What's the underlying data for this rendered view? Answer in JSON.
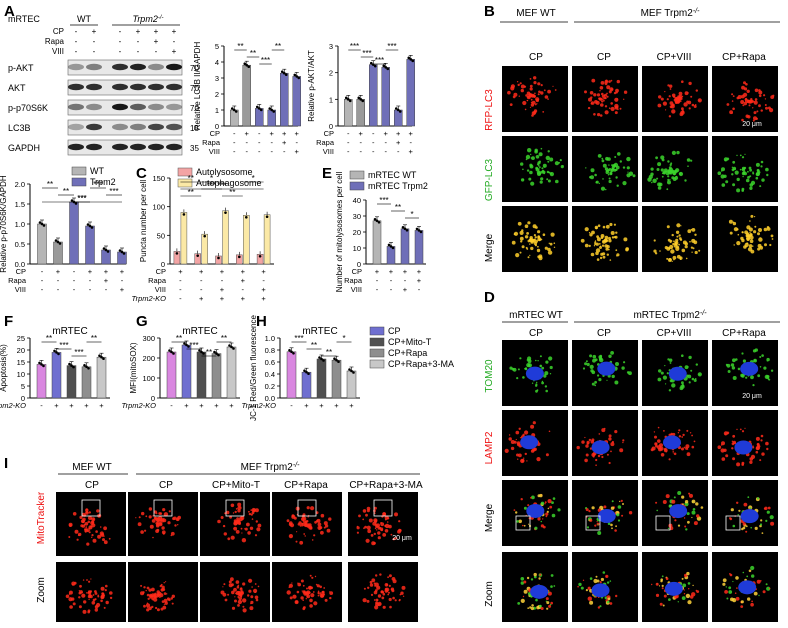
{
  "panel_letters": {
    "A": "A",
    "B": "B",
    "C": "C",
    "D": "D",
    "E": "E",
    "F": "F",
    "G": "G",
    "H": "H",
    "I": "I"
  },
  "common": {
    "cp": "CP",
    "rapa": "Rapa",
    "viii": "VIII",
    "trpm2ko": "Trpm2-KO",
    "scale": "20 μm",
    "zoom": "Zoom",
    "merge": "Merge",
    "mrtec": "mRTEC"
  },
  "panelA": {
    "header_cell": "mRTEC",
    "wt": "WT",
    "ko": "Trpm2",
    "row_labels": [
      "CP",
      "Rapa",
      "VIII"
    ],
    "signs": [
      [
        "-",
        "+",
        "-",
        "+",
        "+",
        "+"
      ],
      [
        "-",
        "-",
        "-",
        "-",
        "+",
        "-"
      ],
      [
        "-",
        "-",
        "-",
        "-",
        "-",
        "+"
      ]
    ],
    "blots": [
      {
        "name": "p-AKT",
        "kda": "70"
      },
      {
        "name": "AKT",
        "kda": "70"
      },
      {
        "name": "p-p70S6K",
        "kda": "70"
      },
      {
        "name": "LC3B",
        "kda": "15"
      },
      {
        "name": "GAPDH",
        "kda": "35"
      }
    ]
  },
  "panelB": {
    "col_labels": [
      "MEF WT",
      "CP",
      "CP",
      "CP+VIII",
      "CP+Rapa"
    ],
    "group_label": "MEF Trpm2",
    "row_labels": [
      "RFP-LC3",
      "GFP-LC3",
      "Merge"
    ]
  },
  "panelD": {
    "col_labels": [
      "CP",
      "CP",
      "CP+VIII",
      "CP+Rapa"
    ],
    "group_wt": "mRTEC  WT",
    "group_ko": "mRTEC Trpm2",
    "row_labels": [
      "TOM20",
      "LAMP2",
      "Merge",
      "Zoom"
    ]
  },
  "panelI": {
    "col_labels": [
      "CP",
      "CP",
      "CP+Mito-T",
      "CP+Rapa",
      "CP+Rapa+3-MA"
    ],
    "group_wt": "MEF WT",
    "group_ko": "MEF Trpm2",
    "row_labels": [
      "MitoTracker",
      "Zoom"
    ]
  },
  "chart_data": [
    {
      "id": "A_lc3",
      "type": "bar",
      "ylabel": "Relative LC3B II/GAPDH",
      "ylim": [
        0,
        5
      ],
      "yticks": [
        0,
        1,
        2,
        3,
        4,
        5
      ],
      "values": [
        1.0,
        3.8,
        1.1,
        1.0,
        3.3,
        3.1
      ],
      "colors": [
        "#b5b5b5",
        "#9a9a9a",
        "#6f6fb8",
        "#6f6fb8",
        "#6f6fb8",
        "#6f6fb8"
      ],
      "sig": [
        "**",
        "**",
        "***",
        "**"
      ],
      "signs": [
        [
          "-",
          "+",
          "-",
          "+",
          "+",
          "+"
        ],
        [
          "-",
          "-",
          "-",
          "-",
          "+",
          "-"
        ],
        [
          "-",
          "-",
          "-",
          "-",
          "-",
          "+"
        ]
      ],
      "rows": [
        "CP",
        "Rapa",
        "VIII"
      ]
    },
    {
      "id": "A_akt",
      "type": "bar",
      "ylabel": "Relative p-AKT/AKT",
      "ylim": [
        0,
        3
      ],
      "yticks": [
        0,
        1,
        2,
        3
      ],
      "values": [
        1.0,
        1.0,
        2.3,
        2.2,
        0.6,
        2.5
      ],
      "colors": [
        "#b5b5b5",
        "#9a9a9a",
        "#6f6fb8",
        "#6f6fb8",
        "#6f6fb8",
        "#6f6fb8"
      ],
      "sig": [
        "***",
        "***",
        "***",
        "***"
      ],
      "signs": [
        [
          "-",
          "+",
          "-",
          "+",
          "+",
          "+"
        ],
        [
          "-",
          "-",
          "-",
          "-",
          "+",
          "-"
        ],
        [
          "-",
          "-",
          "-",
          "-",
          "-",
          "+"
        ]
      ],
      "rows": [
        "CP",
        "Rapa",
        "VIII"
      ]
    },
    {
      "id": "A_p70",
      "type": "bar",
      "ylabel": "Relative p-p70S6K/GAPDH",
      "ylim": [
        0,
        2.0
      ],
      "yticks": [
        0,
        0.5,
        1.0,
        1.5,
        2.0
      ],
      "values": [
        1.0,
        0.55,
        1.55,
        0.95,
        0.35,
        0.3
      ],
      "colors": [
        "#b5b5b5",
        "#9a9a9a",
        "#6f6fb8",
        "#6f6fb8",
        "#6f6fb8",
        "#6f6fb8"
      ],
      "legend": [
        "WT",
        "Trpm2"
      ],
      "sig": [
        "**",
        "**",
        "***",
        "***",
        "***",
        "***"
      ],
      "signs": [
        [
          "-",
          "+",
          "-",
          "+",
          "+",
          "+"
        ],
        [
          "-",
          "-",
          "-",
          "-",
          "+",
          "-"
        ],
        [
          "-",
          "-",
          "-",
          "-",
          "-",
          "+"
        ]
      ],
      "rows": [
        "CP",
        "Rapa",
        "VIII"
      ]
    },
    {
      "id": "C",
      "type": "bar",
      "ylabel": "Puncta number per cell",
      "ylim": [
        0,
        150
      ],
      "yticks": [
        0,
        50,
        100,
        150
      ],
      "series": [
        {
          "name": "Autolysosome",
          "color": "#f3a4a4",
          "values": [
            22,
            18,
            14,
            16,
            17
          ]
        },
        {
          "name": "Autophagosome",
          "color": "#fbe9a6",
          "values": [
            90,
            52,
            93,
            85,
            86
          ]
        }
      ],
      "sig": [
        "**",
        "***",
        "**",
        "*",
        "***",
        "**",
        "*"
      ],
      "signs": [
        [
          "+",
          "+",
          "+",
          "+",
          "+"
        ],
        [
          "-",
          "-",
          "-",
          "+",
          "-"
        ],
        [
          "-",
          "-",
          "+",
          "-",
          "+"
        ],
        [
          "-",
          "+",
          "+",
          "+",
          "+"
        ]
      ],
      "rows": [
        "CP",
        "Rapa",
        "VIII",
        "Trpm2-KO"
      ]
    },
    {
      "id": "E",
      "type": "bar",
      "ylabel": "Number of mitolysosomes per cell",
      "ylim": [
        0,
        40
      ],
      "yticks": [
        0,
        10,
        20,
        30,
        40
      ],
      "values": [
        27,
        11,
        22,
        21
      ],
      "colors": [
        "#b5b5b5",
        "#6f6fb8",
        "#6f6fb8",
        "#6f6fb8"
      ],
      "legend": [
        "mRTEC  WT",
        "mRTEC  Trpm2"
      ],
      "sig": [
        "***",
        "**",
        "*"
      ],
      "signs": [
        [
          "+",
          "+",
          "+",
          "+"
        ],
        [
          "-",
          "-",
          "-",
          "+"
        ],
        [
          "-",
          "-",
          "+",
          "-"
        ]
      ],
      "rows": [
        "CP",
        "Rapa",
        "VIII"
      ]
    },
    {
      "id": "F",
      "type": "bar",
      "title": "mRTEC",
      "ylabel": "Apoptosis(%)",
      "ylim": [
        0,
        25
      ],
      "yticks": [
        0,
        5,
        10,
        15,
        20,
        25
      ],
      "values": [
        14,
        19,
        13.5,
        13,
        17
      ],
      "colors": [
        "#d987e0",
        "#6f6fd0",
        "#505050",
        "#8e8e8e",
        "#c8c8c8"
      ],
      "sig": [
        "**",
        "***",
        "***",
        "**"
      ],
      "signs": [
        [
          "-",
          "+",
          "+",
          "+",
          "+"
        ]
      ],
      "rows": [
        "Trpm2-KO"
      ]
    },
    {
      "id": "G",
      "type": "bar",
      "title": "mRTEC",
      "ylabel": "MFI(mitoSOX)",
      "ylim": [
        0,
        300
      ],
      "yticks": [
        0,
        100,
        200,
        300
      ],
      "values": [
        230,
        265,
        230,
        222,
        255
      ],
      "colors": [
        "#d987e0",
        "#6f6fd0",
        "#505050",
        "#8e8e8e",
        "#c8c8c8"
      ],
      "sig": [
        "**",
        "***",
        "**",
        "**"
      ],
      "signs": [
        [
          "-",
          "+",
          "+",
          "+",
          "+"
        ]
      ],
      "rows": [
        "Trpm2-KO"
      ]
    },
    {
      "id": "H",
      "type": "bar",
      "title": "mRTEC",
      "ylabel": "JC-1 Red/Green fluorescence",
      "ylim": [
        0,
        1.0
      ],
      "yticks": [
        0,
        0.2,
        0.4,
        0.6,
        0.8,
        1.0
      ],
      "values": [
        0.77,
        0.43,
        0.65,
        0.63,
        0.45
      ],
      "colors": [
        "#d987e0",
        "#6f6fd0",
        "#505050",
        "#8e8e8e",
        "#c8c8c8"
      ],
      "legend": [
        "CP",
        "CP+Mito-T",
        "CP+Rapa",
        "CP+Rapa+3-MA"
      ],
      "sig": [
        "***",
        "**",
        "**",
        "*"
      ],
      "signs": [
        [
          "-",
          "+",
          "+",
          "+",
          "+"
        ]
      ],
      "rows": [
        "Trpm2-KO"
      ]
    }
  ]
}
